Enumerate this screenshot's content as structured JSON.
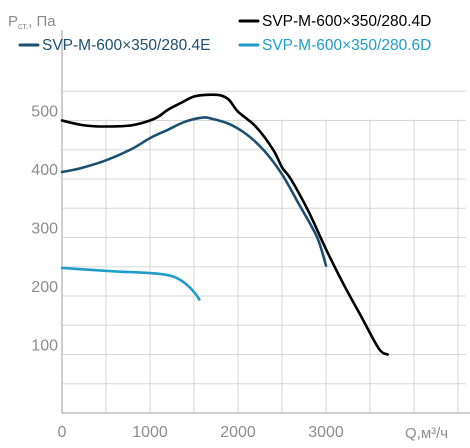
{
  "chart_data": {
    "type": "line",
    "title": "",
    "xlabel": "Q,м³/ч",
    "ylabel_main": "P",
    "ylabel_sub": "ст.",
    "ylabel_unit": ", Па",
    "xlim": [
      0,
      4700
    ],
    "ylim": [
      0,
      570
    ],
    "x_ticks": [
      0,
      1000,
      2000,
      3000
    ],
    "y_ticks": [
      100,
      200,
      300,
      400,
      500
    ],
    "grid": true,
    "legend": "top",
    "series": [
      {
        "name": "SVP-M-600×350/280.4D",
        "color": "#000000",
        "points": [
          [
            0,
            500
          ],
          [
            200,
            493
          ],
          [
            400,
            490
          ],
          [
            600,
            490
          ],
          [
            800,
            492
          ],
          [
            1000,
            500
          ],
          [
            1100,
            507
          ],
          [
            1200,
            518
          ],
          [
            1350,
            530
          ],
          [
            1500,
            541
          ],
          [
            1650,
            544
          ],
          [
            1800,
            543
          ],
          [
            1900,
            535
          ],
          [
            2000,
            515
          ],
          [
            2200,
            490
          ],
          [
            2400,
            450
          ],
          [
            2500,
            420
          ],
          [
            2600,
            400
          ],
          [
            2800,
            345
          ],
          [
            3000,
            280
          ],
          [
            3200,
            220
          ],
          [
            3400,
            165
          ],
          [
            3600,
            110
          ],
          [
            3700,
            100
          ]
        ]
      },
      {
        "name": "SVP-M-600×350/280.4E",
        "color": "#1d4f70",
        "points": [
          [
            0,
            412
          ],
          [
            200,
            418
          ],
          [
            500,
            432
          ],
          [
            800,
            452
          ],
          [
            1000,
            470
          ],
          [
            1200,
            484
          ],
          [
            1400,
            498
          ],
          [
            1600,
            505
          ],
          [
            1700,
            503
          ],
          [
            1900,
            494
          ],
          [
            2100,
            476
          ],
          [
            2300,
            448
          ],
          [
            2500,
            408
          ],
          [
            2700,
            355
          ],
          [
            2900,
            300
          ],
          [
            3000,
            252
          ]
        ]
      },
      {
        "name": "SVP-M-600×350/280.6D",
        "color": "#1f9cc9",
        "points": [
          [
            0,
            248
          ],
          [
            300,
            245
          ],
          [
            600,
            242
          ],
          [
            900,
            240
          ],
          [
            1100,
            238
          ],
          [
            1250,
            234
          ],
          [
            1350,
            227
          ],
          [
            1450,
            215
          ],
          [
            1520,
            203
          ],
          [
            1560,
            194
          ]
        ]
      }
    ]
  }
}
